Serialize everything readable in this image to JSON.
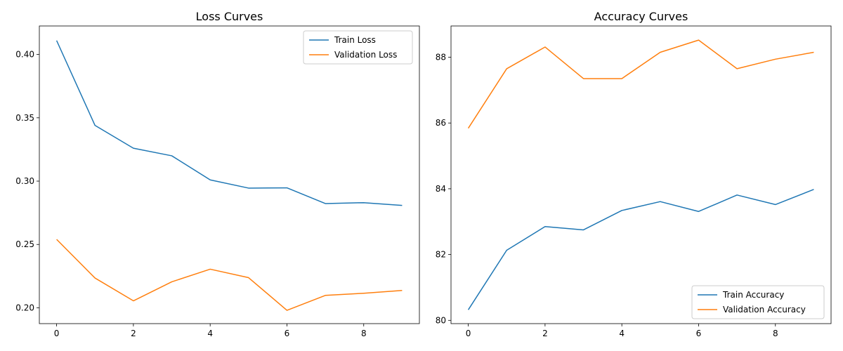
{
  "chart_data": [
    {
      "type": "line",
      "title": "Loss Curves",
      "xlabel": "",
      "ylabel": "",
      "xlim": [
        -0.45,
        9.45
      ],
      "ylim": [
        0.1875,
        0.4225
      ],
      "xticks": [
        0,
        2,
        4,
        6,
        8
      ],
      "xtick_labels": [
        "0",
        "2",
        "4",
        "6",
        "8"
      ],
      "yticks": [
        0.2,
        0.25,
        0.3,
        0.35,
        0.4
      ],
      "ytick_labels": [
        "0.20",
        "0.25",
        "0.30",
        "0.35",
        "0.40"
      ],
      "grid": false,
      "legend_position": "top-right",
      "x": [
        0,
        1,
        2,
        3,
        4,
        5,
        6,
        7,
        8,
        9
      ],
      "series": [
        {
          "name": "Train Loss",
          "color": "#1f77b4",
          "values": [
            0.411,
            0.344,
            0.326,
            0.32,
            0.301,
            0.2945,
            0.2947,
            0.2823,
            0.283,
            0.2808
          ]
        },
        {
          "name": "Validation Loss",
          "color": "#ff7f0e",
          "values": [
            0.254,
            0.2235,
            0.2055,
            0.2205,
            0.2305,
            0.2238,
            0.198,
            0.2098,
            0.2115,
            0.2137
          ]
        }
      ]
    },
    {
      "type": "line",
      "title": "Accuracy Curves",
      "xlabel": "",
      "ylabel": "",
      "xlim": [
        -0.45,
        9.45
      ],
      "ylim": [
        79.9,
        88.95
      ],
      "xticks": [
        0,
        2,
        4,
        6,
        8
      ],
      "xtick_labels": [
        "0",
        "2",
        "4",
        "6",
        "8"
      ],
      "yticks": [
        80,
        82,
        84,
        86,
        88
      ],
      "ytick_labels": [
        "80",
        "82",
        "84",
        "86",
        "88"
      ],
      "grid": false,
      "legend_position": "bottom-right",
      "x": [
        0,
        1,
        2,
        3,
        4,
        5,
        6,
        7,
        8,
        9
      ],
      "series": [
        {
          "name": "Train Accuracy",
          "color": "#1f77b4",
          "values": [
            80.32,
            82.13,
            82.85,
            82.75,
            83.34,
            83.61,
            83.31,
            83.81,
            83.52,
            83.98
          ]
        },
        {
          "name": "Validation Accuracy",
          "color": "#ff7f0e",
          "values": [
            85.84,
            87.65,
            88.31,
            87.35,
            87.35,
            88.15,
            88.52,
            87.65,
            87.94,
            88.15
          ]
        }
      ]
    }
  ]
}
